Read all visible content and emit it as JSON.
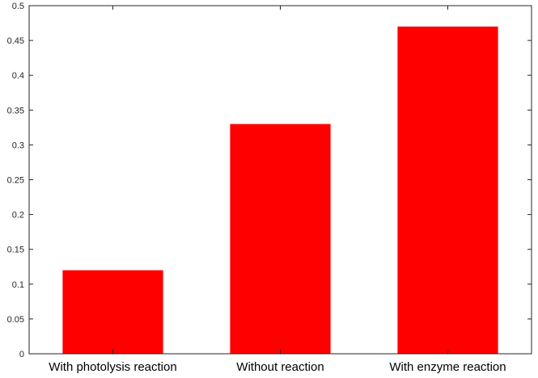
{
  "chart_data": {
    "type": "bar",
    "categories": [
      "With photolysis reaction",
      "Without reaction",
      "With enzyme reaction"
    ],
    "values": [
      0.12,
      0.33,
      0.47
    ],
    "ylim": [
      0,
      0.5
    ],
    "yticks": [
      0,
      0.05,
      0.1,
      0.15,
      0.2,
      0.25,
      0.3,
      0.35,
      0.4,
      0.45,
      0.5
    ],
    "ytick_labels": [
      "0",
      "0.05",
      "0.1",
      "0.15",
      "0.2",
      "0.25",
      "0.3",
      "0.35",
      "0.4",
      "0.45",
      "0.5"
    ],
    "title": "",
    "xlabel": "",
    "ylabel": "",
    "grid": false,
    "bar_color": "#ff0000",
    "axis_color": "#262626"
  }
}
